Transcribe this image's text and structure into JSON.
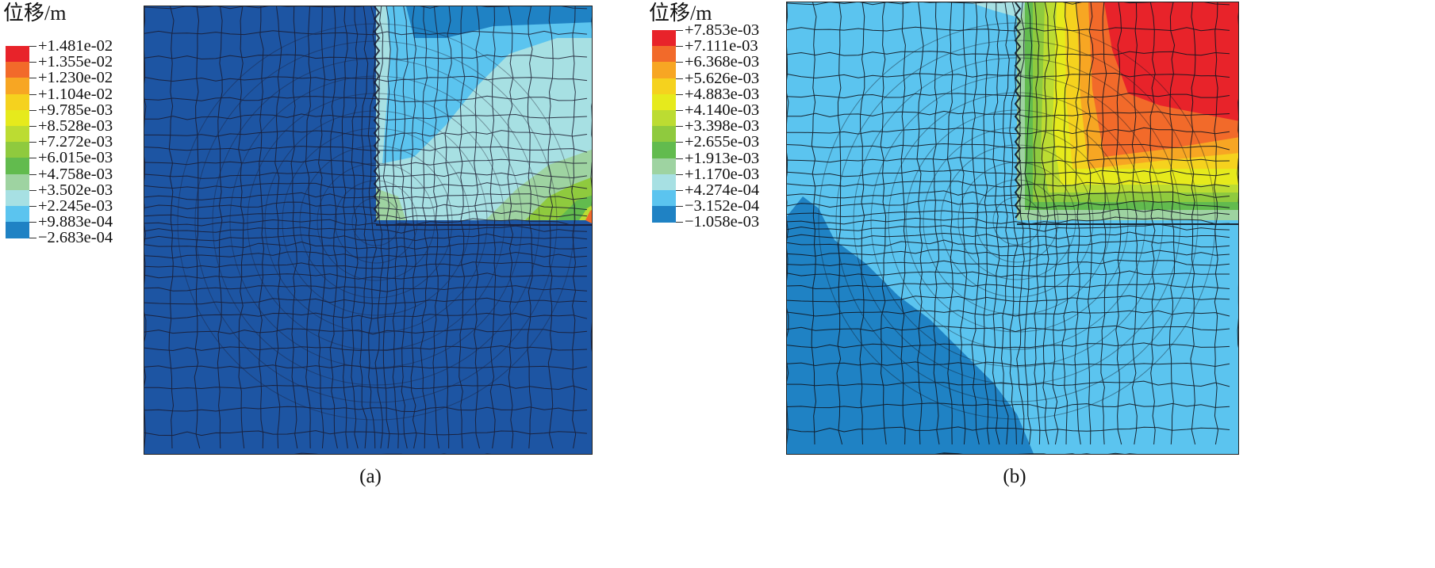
{
  "panels": [
    {
      "legend_title": "位移/m",
      "legend_labels": [
        "+1.481e-02",
        "+1.355e-02",
        "+1.230e-02",
        "+1.104e-02",
        "+9.785e-03",
        "+8.528e-03",
        "+7.272e-03",
        "+6.015e-03",
        "+4.758e-03",
        "+3.502e-03",
        "+2.245e-03",
        "+9.883e-04",
        "−2.683e-04"
      ],
      "legend_colors": [
        "#e8232a",
        "#f26a2a",
        "#f7a623",
        "#f5d21e",
        "#e6ea1c",
        "#bcdc32",
        "#8fca3e",
        "#62bb4e",
        "#9ed3a1",
        "#a7e0e3",
        "#5bc4ef",
        "#1f82c4",
        "#1d55a3"
      ],
      "caption": "(a)"
    },
    {
      "legend_title": "位移/m",
      "legend_labels": [
        "+7.853e-03",
        "+7.111e-03",
        "+6.368e-03",
        "+5.626e-03",
        "+4.883e-03",
        "+4.140e-03",
        "+3.398e-03",
        "+2.655e-03",
        "+1.913e-03",
        "+1.170e-03",
        "+4.274e-04",
        "−3.152e-04",
        "−1.058e-03"
      ],
      "legend_colors": [
        "#e8232a",
        "#f26a2a",
        "#f7a623",
        "#f5d21e",
        "#e6ea1c",
        "#bcdc32",
        "#8fca3e",
        "#62bb4e",
        "#9ed3a1",
        "#a7e0e3",
        "#5bc4ef",
        "#1f82c4",
        "#1d55a3"
      ],
      "caption": "(b)"
    }
  ]
}
